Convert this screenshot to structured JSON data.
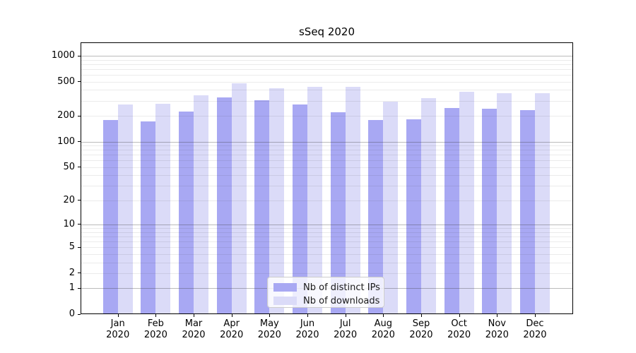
{
  "chart_data": {
    "type": "bar",
    "title": "sSeq 2020",
    "categories": [
      "Jan 2020",
      "Feb 2020",
      "Mar 2020",
      "Apr 2020",
      "May 2020",
      "Jun 2020",
      "Jul 2020",
      "Aug 2020",
      "Sep 2020",
      "Oct 2020",
      "Nov 2020",
      "Dec 2020"
    ],
    "series": [
      {
        "name": "Nb of distinct IPs",
        "color": "#a8a8f3",
        "values": [
          178,
          171,
          226,
          325,
          305,
          272,
          219,
          178,
          181,
          249,
          240,
          231
        ]
      },
      {
        "name": "Nb of downloads",
        "color": "#dbdbf8",
        "values": [
          272,
          274,
          346,
          480,
          418,
          437,
          437,
          295,
          319,
          380,
          366,
          365
        ]
      }
    ],
    "xlabel": "",
    "ylabel": "",
    "yscale": "log1p",
    "yticks": [
      0,
      1,
      2,
      5,
      10,
      20,
      50,
      100,
      200,
      500,
      1000
    ],
    "minor_gridline_values": [
      2,
      3,
      4,
      5,
      6,
      7,
      8,
      9,
      20,
      30,
      40,
      50,
      60,
      70,
      80,
      90,
      200,
      300,
      400,
      500,
      600,
      700,
      800,
      900
    ],
    "major_gridline_values": [
      1,
      10,
      100,
      1000
    ],
    "ylim": [
      0,
      1430
    ],
    "grid": "on",
    "legend_position": "lower-center"
  }
}
